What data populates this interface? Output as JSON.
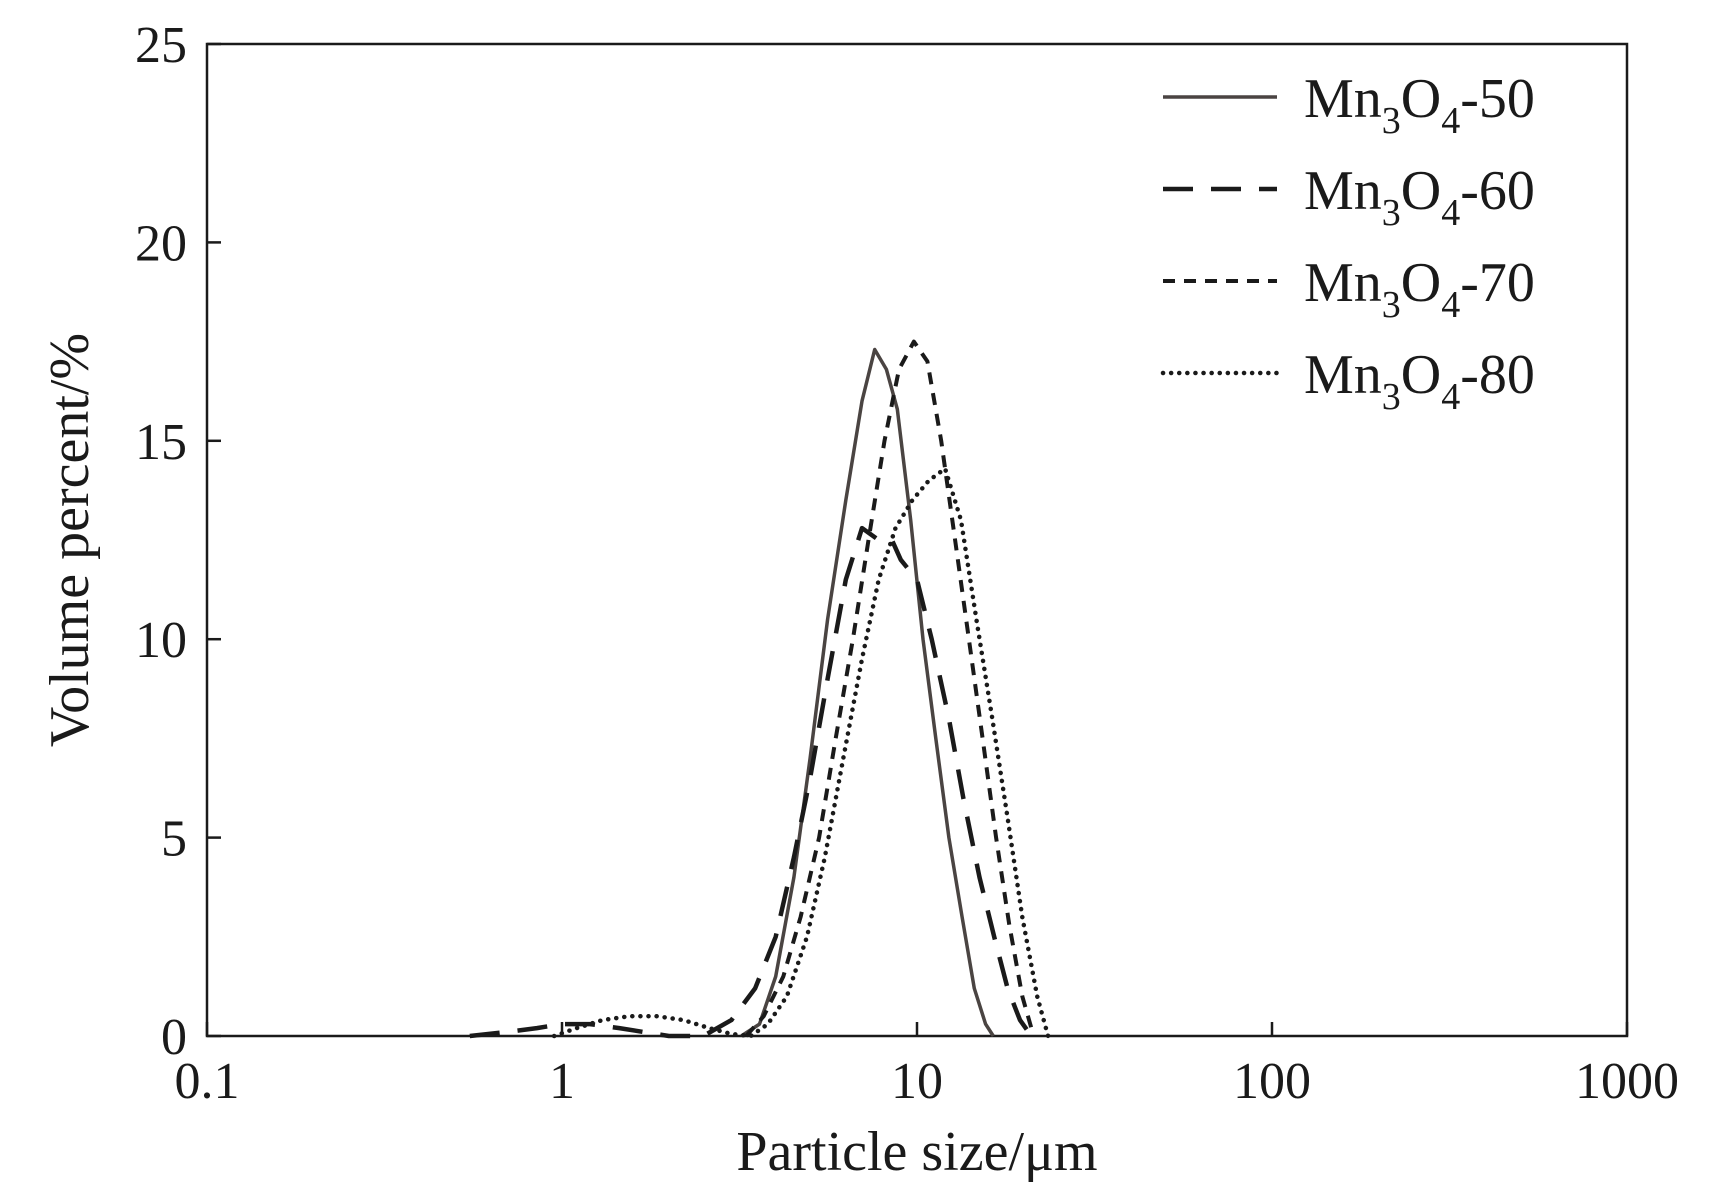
{
  "chart_data": {
    "type": "line",
    "xlabel": "Particle size/μm",
    "ylabel": "Volume percent/%",
    "xscale": "log",
    "xlim": [
      0.1,
      1000
    ],
    "ylim": [
      0,
      25
    ],
    "xticks": [
      0.1,
      1,
      10,
      100,
      1000
    ],
    "xtick_labels": [
      "0.1",
      "1",
      "10",
      "100",
      "1000"
    ],
    "yticks": [
      0,
      5,
      10,
      15,
      20,
      25
    ],
    "ytick_labels": [
      "0",
      "5",
      "10",
      "15",
      "20",
      "25"
    ],
    "grid": false,
    "legend_position": "top-right",
    "series": [
      {
        "name": "Mn3O4-50",
        "legend": {
          "base": "Mn",
          "sub1": "3",
          "mid": "O",
          "sub2": "4",
          "suffix": "-50"
        },
        "style": "solid",
        "color": "#4a4442",
        "x": [
          3.2,
          3.6,
          4.0,
          4.5,
          5.0,
          5.6,
          6.3,
          7.0,
          7.6,
          8.2,
          8.8,
          9.6,
          10.4,
          11.3,
          12.3,
          13.4,
          14.5,
          15.6,
          16.4
        ],
        "y": [
          0.0,
          0.3,
          1.5,
          4.0,
          7.0,
          10.5,
          13.5,
          16.0,
          17.3,
          16.8,
          15.8,
          13.0,
          10.0,
          7.5,
          5.0,
          3.0,
          1.2,
          0.3,
          0.0
        ]
      },
      {
        "name": "Mn3O4-60",
        "legend": {
          "base": "Mn",
          "sub1": "3",
          "mid": "O",
          "sub2": "4",
          "suffix": "-60"
        },
        "style": "dashed",
        "color": "#1a1a1a",
        "x": [
          0.55,
          0.7,
          0.85,
          1.0,
          1.2,
          1.45,
          1.7,
          2.0,
          2.5,
          3.0,
          3.5,
          4.0,
          4.5,
          5.0,
          5.6,
          6.3,
          7.0,
          7.8,
          8.5,
          9.0,
          10.0,
          11.0,
          12.3,
          13.5,
          15.0,
          16.5,
          18.0,
          19.5,
          21.0
        ],
        "y": [
          0.0,
          0.1,
          0.2,
          0.3,
          0.3,
          0.2,
          0.1,
          0.0,
          0.0,
          0.4,
          1.2,
          2.5,
          4.5,
          6.5,
          9.0,
          11.5,
          12.8,
          12.5,
          12.5,
          12.0,
          11.5,
          10.0,
          8.0,
          6.0,
          4.0,
          2.5,
          1.2,
          0.4,
          0.0
        ]
      },
      {
        "name": "Mn3O4-70",
        "legend": {
          "base": "Mn",
          "sub1": "3",
          "mid": "O",
          "sub2": "4",
          "suffix": "-70"
        },
        "style": "short-dashed",
        "color": "#1a1a1a",
        "x": [
          3.3,
          3.7,
          4.2,
          4.7,
          5.3,
          5.9,
          6.6,
          7.3,
          8.1,
          8.9,
          9.8,
          10.7,
          11.7,
          12.8,
          14.0,
          15.3,
          16.7,
          18.2,
          19.8,
          21.3
        ],
        "y": [
          0.0,
          0.5,
          1.5,
          3.0,
          5.0,
          7.5,
          10.0,
          12.5,
          15.0,
          16.8,
          17.5,
          17.0,
          15.0,
          12.5,
          10.0,
          7.5,
          5.0,
          2.8,
          1.0,
          0.0
        ]
      },
      {
        "name": "Mn3O4-80",
        "legend": {
          "base": "Mn",
          "sub1": "3",
          "mid": "O",
          "sub2": "4",
          "suffix": "-80"
        },
        "style": "dotted",
        "color": "#1a1a1a",
        "x": [
          0.95,
          1.1,
          1.3,
          1.55,
          1.85,
          2.2,
          2.6,
          3.0,
          3.4,
          3.8,
          4.3,
          4.9,
          5.5,
          6.2,
          7.0,
          7.8,
          8.7,
          9.7,
          10.8,
          12.0,
          13.3,
          14.7,
          16.3,
          18.0,
          19.8,
          21.8,
          23.4
        ],
        "y": [
          0.0,
          0.2,
          0.4,
          0.5,
          0.5,
          0.4,
          0.2,
          0.05,
          0.0,
          0.3,
          1.0,
          2.5,
          4.5,
          7.0,
          9.5,
          11.5,
          12.8,
          13.5,
          14.0,
          14.3,
          13.0,
          10.5,
          8.0,
          5.5,
          3.0,
          1.0,
          0.0
        ]
      }
    ]
  }
}
